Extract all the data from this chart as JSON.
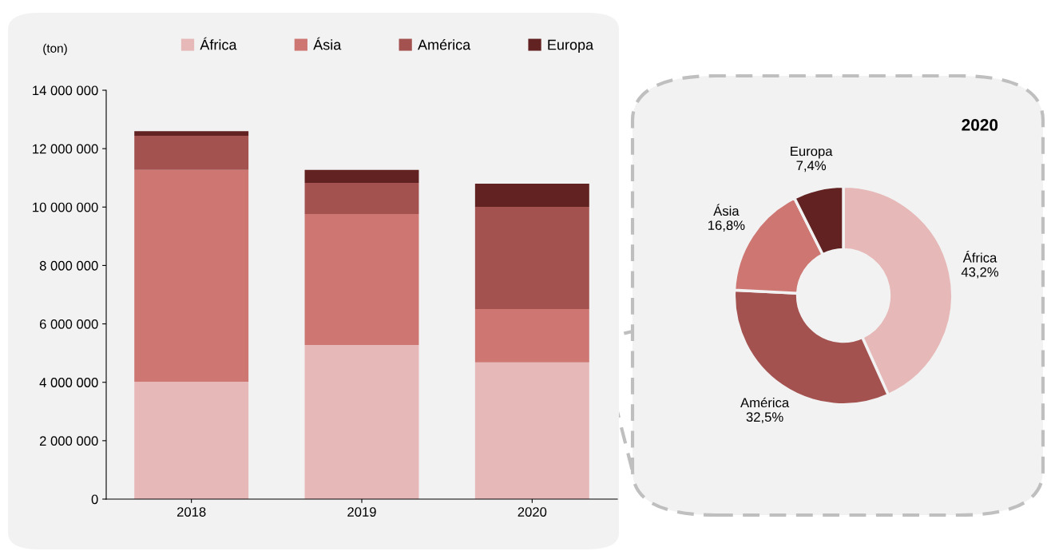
{
  "chart_data": [
    {
      "type": "bar",
      "stacked": true,
      "ylabel": "(ton)",
      "categories": [
        "2018",
        "2019",
        "2020"
      ],
      "legend": "top",
      "grid": false,
      "ylim": [
        0,
        14000000
      ],
      "yticks": [
        {
          "value": 0,
          "label": "0"
        },
        {
          "value": 2000000,
          "label": "2 000 000"
        },
        {
          "value": 4000000,
          "label": "4 000 000"
        },
        {
          "value": 6000000,
          "label": "6 000 000"
        },
        {
          "value": 8000000,
          "label": "8 000 000"
        },
        {
          "value": 10000000,
          "label": "10 000 000"
        },
        {
          "value": 12000000,
          "label": "12 000 000"
        },
        {
          "value": 14000000,
          "label": "14 000 000"
        }
      ],
      "series": [
        {
          "name": "África",
          "color": "#e6b8b7",
          "values": [
            4020000,
            5280000,
            4680000
          ]
        },
        {
          "name": "Ásia",
          "color": "#cd7672",
          "values": [
            7250000,
            4480000,
            1830000
          ]
        },
        {
          "name": "América",
          "color": "#a45250",
          "values": [
            1170000,
            1070000,
            3500000
          ]
        },
        {
          "name": "Europa",
          "color": "#632222",
          "values": [
            160000,
            440000,
            790000
          ]
        }
      ]
    },
    {
      "type": "donut",
      "title": "2020",
      "categories": [
        "África",
        "América",
        "Ásia",
        "Europa"
      ],
      "values": [
        43.2,
        32.5,
        16.8,
        7.4
      ],
      "value_labels": [
        "43,2%",
        "32,5%",
        "16,8%",
        "7,4%"
      ],
      "colors": [
        "#e6b8b7",
        "#a45250",
        "#cd7672",
        "#632222"
      ]
    }
  ]
}
